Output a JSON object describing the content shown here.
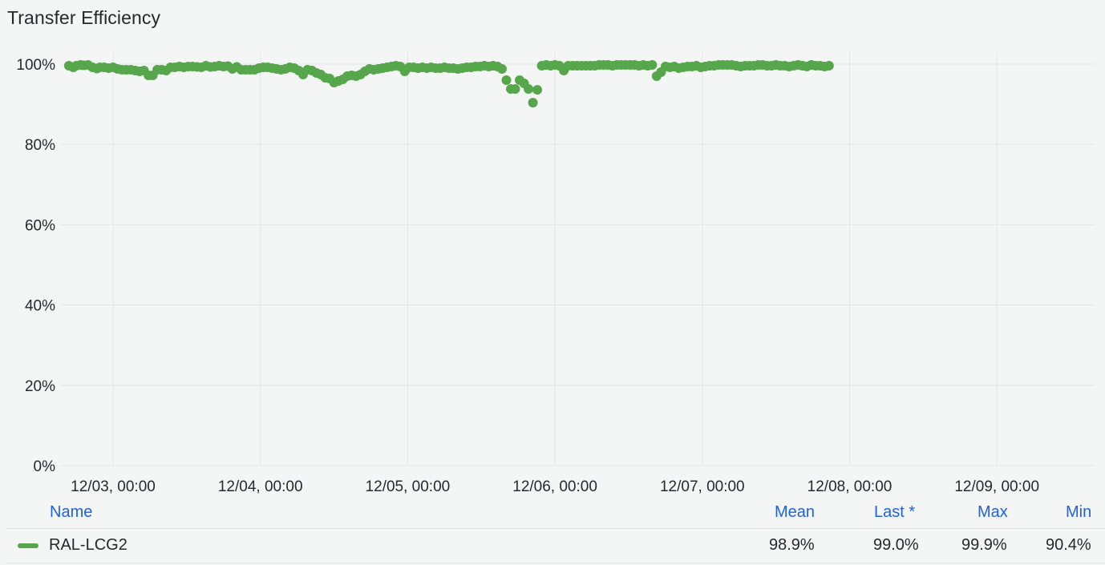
{
  "panel": {
    "title": "Transfer Efficiency"
  },
  "colors": {
    "series": "#56a64b",
    "grid": "#e3e5e7",
    "link": "#1f62e0"
  },
  "legend": {
    "headers": {
      "name": "Name",
      "mean": "Mean",
      "last": "Last *",
      "max": "Max",
      "min": "Min"
    },
    "rows": [
      {
        "name": "RAL-LCG2",
        "mean": "98.9%",
        "last": "99.0%",
        "max": "99.9%",
        "min": "90.4%"
      }
    ]
  },
  "chart_data": {
    "type": "scatter",
    "title": "Transfer Efficiency",
    "xlabel": "",
    "ylabel": "",
    "y_unit": "%",
    "ylim": [
      0,
      100
    ],
    "y_ticks": [
      "0%",
      "20%",
      "40%",
      "60%",
      "80%",
      "100%"
    ],
    "x_ticks": [
      "12/03, 00:00",
      "12/04, 00:00",
      "12/05, 00:00",
      "12/06, 00:00",
      "12/07, 00:00",
      "12/08, 00:00",
      "12/09, 00:00"
    ],
    "x_tick_days": [
      3,
      4,
      5,
      6,
      7,
      8,
      9
    ],
    "grid": true,
    "legend_position": "bottom",
    "series": [
      {
        "name": "RAL-LCG2",
        "points": [
          [
            2.7,
            99.6
          ],
          [
            2.73,
            99.2
          ],
          [
            2.75,
            99.6
          ],
          [
            2.78,
            99.8
          ],
          [
            2.8,
            99.7
          ],
          [
            2.83,
            99.8
          ],
          [
            2.86,
            99.2
          ],
          [
            2.89,
            98.9
          ],
          [
            2.91,
            99.2
          ],
          [
            2.94,
            99.2
          ],
          [
            2.97,
            99.0
          ],
          [
            3.0,
            99.2
          ],
          [
            3.03,
            98.8
          ],
          [
            3.06,
            98.6
          ],
          [
            3.09,
            98.6
          ],
          [
            3.12,
            98.6
          ],
          [
            3.15,
            98.4
          ],
          [
            3.18,
            98.2
          ],
          [
            3.21,
            98.4
          ],
          [
            3.24,
            97.2
          ],
          [
            3.27,
            97.2
          ],
          [
            3.3,
            98.6
          ],
          [
            3.33,
            98.6
          ],
          [
            3.36,
            98.4
          ],
          [
            3.39,
            99.2
          ],
          [
            3.42,
            99.2
          ],
          [
            3.45,
            99.4
          ],
          [
            3.48,
            99.2
          ],
          [
            3.51,
            99.4
          ],
          [
            3.54,
            99.4
          ],
          [
            3.57,
            99.3
          ],
          [
            3.6,
            99.2
          ],
          [
            3.63,
            99.6
          ],
          [
            3.66,
            99.3
          ],
          [
            3.69,
            99.4
          ],
          [
            3.72,
            99.6
          ],
          [
            3.75,
            99.4
          ],
          [
            3.78,
            99.5
          ],
          [
            3.81,
            98.8
          ],
          [
            3.84,
            99.3
          ],
          [
            3.87,
            98.6
          ],
          [
            3.9,
            98.6
          ],
          [
            3.93,
            98.6
          ],
          [
            3.96,
            98.6
          ],
          [
            3.99,
            99.0
          ],
          [
            4.02,
            99.2
          ],
          [
            4.05,
            99.2
          ],
          [
            4.08,
            99.0
          ],
          [
            4.11,
            98.8
          ],
          [
            4.14,
            98.6
          ],
          [
            4.17,
            98.8
          ],
          [
            4.2,
            99.2
          ],
          [
            4.23,
            99.0
          ],
          [
            4.26,
            98.4
          ],
          [
            4.29,
            97.4
          ],
          [
            4.32,
            98.6
          ],
          [
            4.35,
            98.4
          ],
          [
            4.38,
            97.8
          ],
          [
            4.41,
            97.4
          ],
          [
            4.44,
            96.6
          ],
          [
            4.47,
            96.4
          ],
          [
            4.5,
            95.4
          ],
          [
            4.53,
            95.8
          ],
          [
            4.56,
            96.2
          ],
          [
            4.59,
            97.0
          ],
          [
            4.62,
            97.2
          ],
          [
            4.65,
            97.0
          ],
          [
            4.68,
            97.4
          ],
          [
            4.71,
            98.2
          ],
          [
            4.74,
            98.8
          ],
          [
            4.77,
            98.6
          ],
          [
            4.8,
            98.8
          ],
          [
            4.83,
            99.0
          ],
          [
            4.86,
            99.2
          ],
          [
            4.89,
            99.4
          ],
          [
            4.92,
            99.6
          ],
          [
            4.95,
            99.4
          ],
          [
            4.98,
            98.2
          ],
          [
            5.01,
            99.2
          ],
          [
            5.04,
            99.2
          ],
          [
            5.07,
            99.0
          ],
          [
            5.1,
            99.2
          ],
          [
            5.13,
            99.0
          ],
          [
            5.16,
            99.2
          ],
          [
            5.19,
            99.0
          ],
          [
            5.22,
            99.0
          ],
          [
            5.25,
            99.2
          ],
          [
            5.28,
            99.0
          ],
          [
            5.31,
            99.0
          ],
          [
            5.34,
            98.8
          ],
          [
            5.37,
            99.0
          ],
          [
            5.4,
            99.2
          ],
          [
            5.43,
            99.2
          ],
          [
            5.46,
            99.4
          ],
          [
            5.49,
            99.4
          ],
          [
            5.52,
            99.6
          ],
          [
            5.55,
            99.4
          ],
          [
            5.58,
            99.6
          ],
          [
            5.61,
            99.4
          ],
          [
            5.64,
            98.8
          ],
          [
            5.67,
            96.0
          ],
          [
            5.7,
            93.8
          ],
          [
            5.73,
            93.8
          ],
          [
            5.76,
            96.0
          ],
          [
            5.79,
            95.2
          ],
          [
            5.82,
            93.8
          ],
          [
            5.85,
            90.4
          ],
          [
            5.88,
            93.6
          ],
          [
            5.91,
            99.6
          ],
          [
            5.94,
            99.8
          ],
          [
            5.97,
            99.6
          ],
          [
            6.0,
            99.8
          ],
          [
            6.03,
            99.6
          ],
          [
            6.06,
            98.4
          ],
          [
            6.09,
            99.6
          ],
          [
            6.12,
            99.6
          ],
          [
            6.15,
            99.6
          ],
          [
            6.18,
            99.6
          ],
          [
            6.21,
            99.6
          ],
          [
            6.24,
            99.6
          ],
          [
            6.27,
            99.6
          ],
          [
            6.3,
            99.8
          ],
          [
            6.33,
            99.8
          ],
          [
            6.36,
            99.8
          ],
          [
            6.39,
            99.6
          ],
          [
            6.42,
            99.8
          ],
          [
            6.45,
            99.8
          ],
          [
            6.48,
            99.8
          ],
          [
            6.51,
            99.8
          ],
          [
            6.54,
            99.8
          ],
          [
            6.57,
            99.6
          ],
          [
            6.6,
            99.8
          ],
          [
            6.63,
            99.6
          ],
          [
            6.66,
            99.8
          ],
          [
            6.69,
            97.0
          ],
          [
            6.72,
            98.0
          ],
          [
            6.75,
            99.4
          ],
          [
            6.78,
            99.2
          ],
          [
            6.81,
            99.4
          ],
          [
            6.84,
            99.0
          ],
          [
            6.87,
            99.2
          ],
          [
            6.9,
            99.4
          ],
          [
            6.93,
            99.4
          ],
          [
            6.96,
            99.6
          ],
          [
            6.99,
            99.2
          ],
          [
            7.02,
            99.4
          ],
          [
            7.05,
            99.6
          ],
          [
            7.08,
            99.6
          ],
          [
            7.11,
            99.8
          ],
          [
            7.14,
            99.8
          ],
          [
            7.17,
            99.8
          ],
          [
            7.2,
            99.8
          ],
          [
            7.23,
            99.6
          ],
          [
            7.26,
            99.4
          ],
          [
            7.29,
            99.6
          ],
          [
            7.32,
            99.6
          ],
          [
            7.35,
            99.6
          ],
          [
            7.38,
            99.8
          ],
          [
            7.41,
            99.8
          ],
          [
            7.44,
            99.6
          ],
          [
            7.47,
            99.6
          ],
          [
            7.5,
            99.8
          ],
          [
            7.53,
            99.6
          ],
          [
            7.56,
            99.6
          ],
          [
            7.59,
            99.4
          ],
          [
            7.62,
            99.6
          ],
          [
            7.65,
            99.8
          ],
          [
            7.68,
            99.6
          ],
          [
            7.71,
            99.4
          ],
          [
            7.74,
            99.8
          ],
          [
            7.77,
            99.6
          ],
          [
            7.8,
            99.6
          ],
          [
            7.83,
            99.4
          ],
          [
            7.86,
            99.6
          ]
        ]
      }
    ]
  }
}
